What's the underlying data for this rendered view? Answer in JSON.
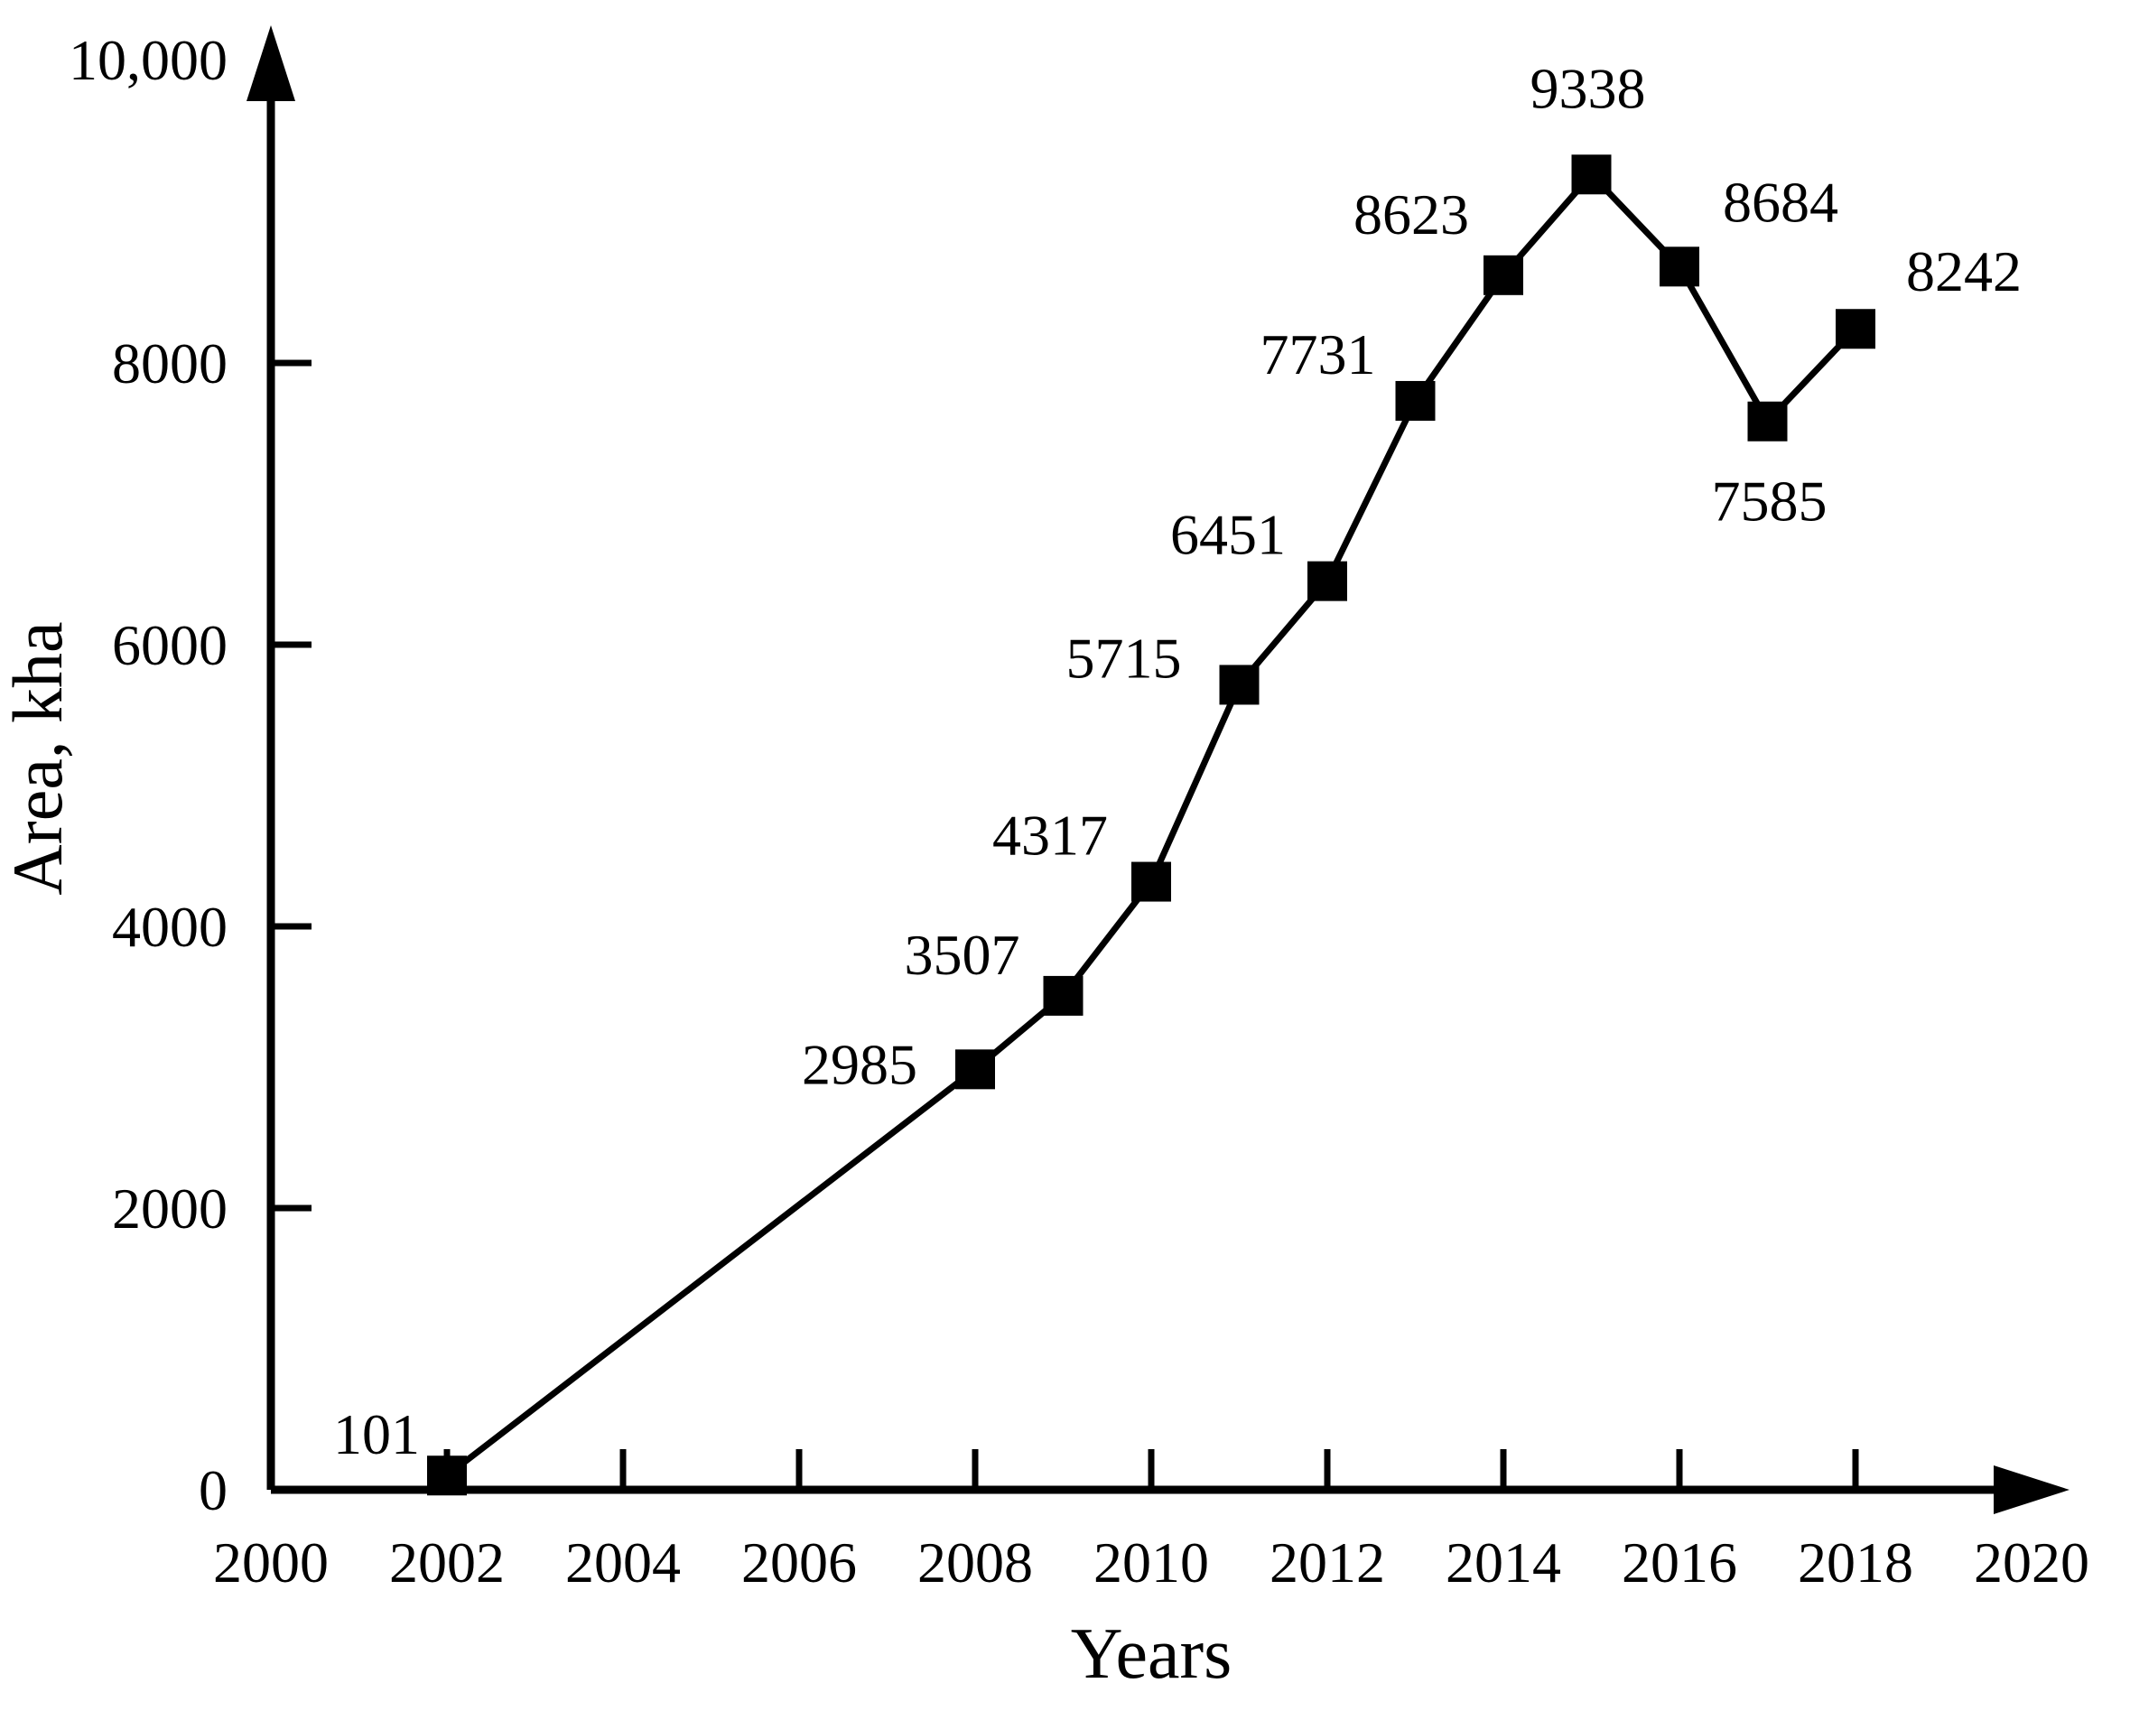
{
  "chart_data": {
    "type": "line",
    "title": "",
    "xlabel": "Years",
    "ylabel": "Area, kha",
    "series_name": "Area",
    "x": [
      2002,
      2008,
      2009,
      2010,
      2011,
      2012,
      2013,
      2014,
      2015,
      2016,
      2017,
      2018
    ],
    "values": [
      101,
      2985,
      3507,
      4317,
      5715,
      6451,
      7731,
      8623,
      9338,
      8684,
      7585,
      8242
    ],
    "point_labels": [
      "101",
      "2985",
      "3507",
      "4317",
      "5715",
      "6451",
      "7731",
      "8623",
      "9338",
      "8684",
      "7585",
      "8242"
    ],
    "xlim": [
      2000,
      2020
    ],
    "ylim": [
      0,
      10000
    ],
    "x_ticks": [
      2000,
      2002,
      2004,
      2006,
      2008,
      2010,
      2012,
      2014,
      2016,
      2018,
      2020
    ],
    "x_tick_labels": [
      "2000",
      "2002",
      "2004",
      "2006",
      "2008",
      "2010",
      "2012",
      "2014",
      "2016",
      "2018",
      "2020"
    ],
    "y_ticks": [
      0,
      2000,
      4000,
      6000,
      8000,
      10000
    ],
    "y_tick_labels": [
      "0",
      "2000",
      "4000",
      "6000",
      "8000",
      "10,000"
    ],
    "grid": false,
    "legend": false,
    "axis_arrows": true,
    "marker": "filled-square",
    "line_color": "#000000",
    "marker_color": "#000000",
    "text_color": "#000000",
    "background_color": "#ffffff"
  }
}
